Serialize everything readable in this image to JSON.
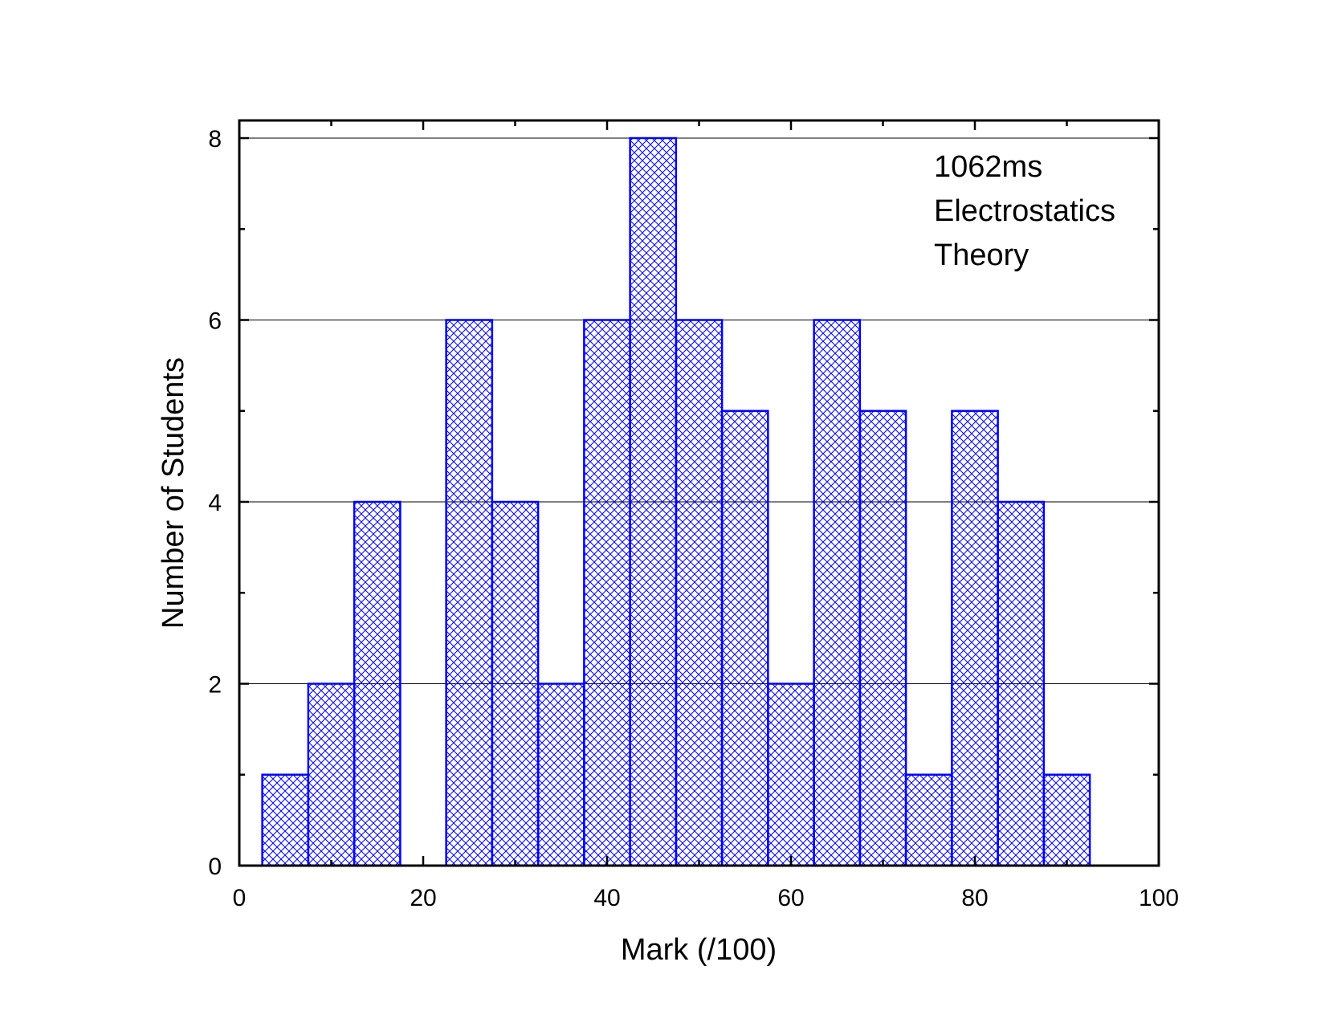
{
  "chart_data": {
    "type": "bar",
    "title": "",
    "xlabel": "Mark (/100)",
    "ylabel": "Number of Students",
    "xlim": [
      0,
      100
    ],
    "ylim": [
      0,
      8
    ],
    "x_ticks": [
      0,
      20,
      40,
      60,
      80,
      100
    ],
    "y_ticks": [
      0,
      2,
      4,
      6,
      8
    ],
    "grid": "horizontal at major y ticks",
    "bin_width": 5,
    "bar_style": "blue crosshatch fill with blue outline",
    "bar_color": "#0000ff",
    "grid_color": "#000000",
    "bins": [
      {
        "center": 5,
        "value": 1
      },
      {
        "center": 10,
        "value": 2
      },
      {
        "center": 15,
        "value": 4
      },
      {
        "center": 20,
        "value": 0
      },
      {
        "center": 25,
        "value": 6
      },
      {
        "center": 30,
        "value": 4
      },
      {
        "center": 35,
        "value": 2
      },
      {
        "center": 40,
        "value": 6
      },
      {
        "center": 45,
        "value": 8
      },
      {
        "center": 50,
        "value": 6
      },
      {
        "center": 55,
        "value": 5
      },
      {
        "center": 60,
        "value": 2
      },
      {
        "center": 65,
        "value": 6
      },
      {
        "center": 70,
        "value": 5
      },
      {
        "center": 75,
        "value": 1
      },
      {
        "center": 80,
        "value": 5
      },
      {
        "center": 85,
        "value": 4
      },
      {
        "center": 90,
        "value": 1
      }
    ],
    "annotation": [
      "1062ms",
      "Electrostatics",
      "Theory"
    ],
    "annotation_placement": "top-right inside plot"
  }
}
